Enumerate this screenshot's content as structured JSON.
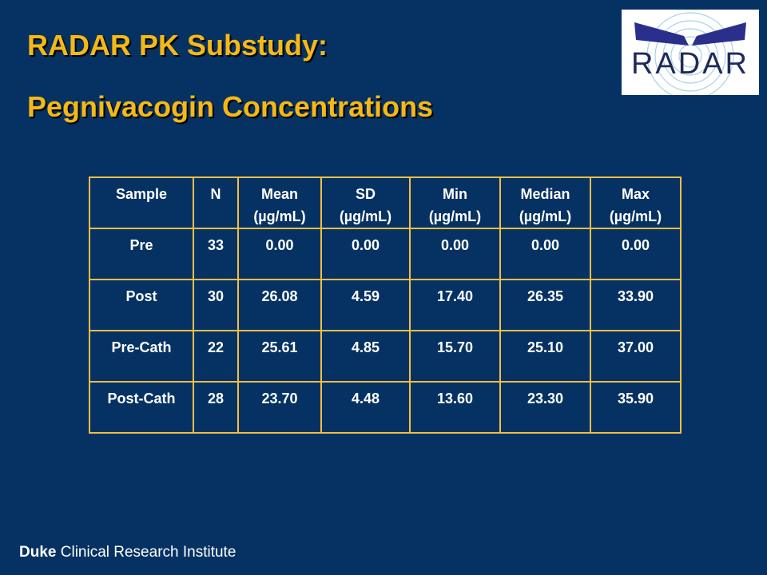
{
  "title": {
    "line1": "RADAR PK Substudy:",
    "line2": "Pegnivacogin Concentrations"
  },
  "logo": {
    "text": "RADAR",
    "icon": "radar-logo-icon"
  },
  "table": {
    "headers": [
      {
        "l1": "Sample",
        "l2": ""
      },
      {
        "l1": "N",
        "l2": ""
      },
      {
        "l1": "Mean",
        "l2": "(µg/mL)"
      },
      {
        "l1": "SD",
        "l2": "(µg/mL)"
      },
      {
        "l1": "Min",
        "l2": "(µg/mL)"
      },
      {
        "l1": "Median",
        "l2": "(µg/mL)"
      },
      {
        "l1": "Max",
        "l2": "(µg/mL)"
      }
    ],
    "rows": [
      [
        "Pre",
        "33",
        "0.00",
        "0.00",
        "0.00",
        "0.00",
        "0.00"
      ],
      [
        "Post",
        "30",
        "26.08",
        "4.59",
        "17.40",
        "26.35",
        "33.90"
      ],
      [
        "Pre-Cath",
        "22",
        "25.61",
        "4.85",
        "15.70",
        "25.10",
        "37.00"
      ],
      [
        "Post-Cath",
        "28",
        "23.70",
        "4.48",
        "13.60",
        "23.30",
        "35.90"
      ]
    ]
  },
  "footer": {
    "bold": "Duke",
    "rest": " Clinical Research Institute"
  },
  "colors": {
    "background": "#063263",
    "title": "#F5B817",
    "table_border": "#F2BE45",
    "text": "#FFFFFF"
  }
}
